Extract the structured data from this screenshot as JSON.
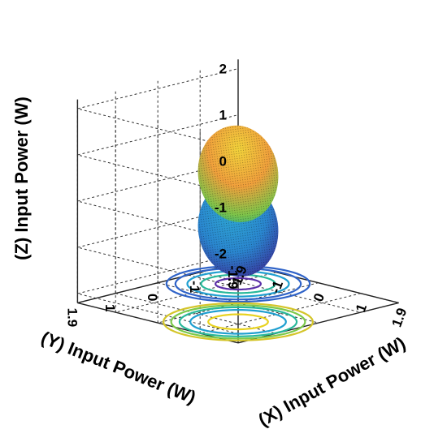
{
  "chart_data": {
    "type": "scatter",
    "title": "",
    "xlabel": "(X) Input Power (W)",
    "ylabel": "(Y) Input Power (W)",
    "zlabel": "(Z) Input Power (W)",
    "xlim": [
      -1.9,
      1.9
    ],
    "ylim": [
      -1.9,
      1.9
    ],
    "zlim": [
      -2.2,
      2.2
    ],
    "x_ticks": [
      "-1.9",
      "-1",
      "0",
      "1",
      "1.9"
    ],
    "y_ticks": [
      "1.9",
      "1",
      "0",
      "-1",
      "-1.9"
    ],
    "z_ticks": [
      "2",
      "1",
      "0",
      "-1",
      "-2"
    ],
    "grid": true,
    "colormap": [
      "#3a1e8c",
      "#2f63c8",
      "#1f9fd0",
      "#28b89a",
      "#7cc94a",
      "#d4c52a",
      "#f2a63a"
    ],
    "series": [
      {
        "shape": "ellipsoid",
        "center": {
          "x": -0.9,
          "y": -0.9,
          "z": -1.0
        },
        "radius": {
          "x": 0.9,
          "y": 0.9,
          "z": 1.0
        },
        "colors": [
          "#2aa3cf",
          "#3a1e8c"
        ]
      },
      {
        "shape": "ellipsoid",
        "center": {
          "x": 0.9,
          "y": 0.9,
          "z": 1.0
        },
        "radius": {
          "x": 0.9,
          "y": 0.9,
          "z": 1.0
        },
        "colors": [
          "#f2a63a",
          "#27b486"
        ]
      }
    ],
    "contours": [
      {
        "cx": -0.9,
        "cy": -0.9,
        "rx": 1.2,
        "ry": 1.2,
        "color": "#2f63c8"
      },
      {
        "cx": -0.9,
        "cy": -0.9,
        "rx": 1.05,
        "ry": 1.05,
        "color": "#2f63c8"
      },
      {
        "cx": -0.9,
        "cy": -0.9,
        "rx": 0.85,
        "ry": 0.85,
        "color": "#1f9fd0"
      },
      {
        "cx": -0.9,
        "cy": -0.9,
        "rx": 0.62,
        "ry": 0.62,
        "color": "#28b89a"
      },
      {
        "cx": -0.9,
        "cy": -0.9,
        "rx": 0.38,
        "ry": 0.38,
        "color": "#5b2fa8"
      },
      {
        "cx": 0.9,
        "cy": 0.9,
        "rx": 1.25,
        "ry": 1.25,
        "color": "#d4c52a"
      },
      {
        "cx": 0.9,
        "cy": 0.9,
        "rx": 1.12,
        "ry": 1.12,
        "color": "#7cc94a"
      },
      {
        "cx": 0.9,
        "cy": 0.9,
        "rx": 0.98,
        "ry": 0.98,
        "color": "#28b89a"
      },
      {
        "cx": 0.9,
        "cy": 0.9,
        "rx": 0.8,
        "ry": 0.8,
        "color": "#1f9fd0"
      },
      {
        "cx": 0.9,
        "cy": 0.9,
        "rx": 0.5,
        "ry": 0.5,
        "color": "#e8d21e"
      }
    ]
  }
}
